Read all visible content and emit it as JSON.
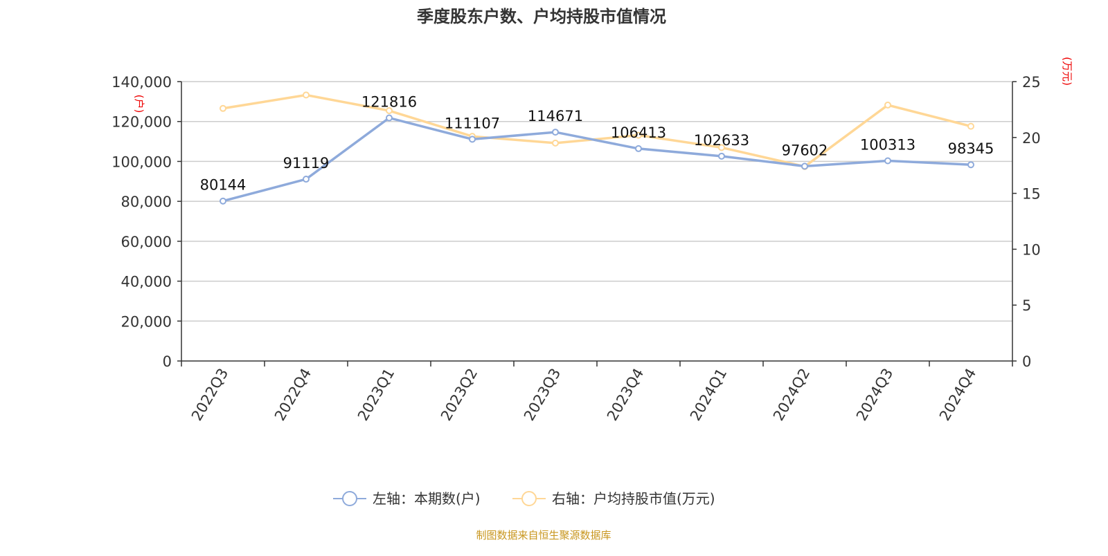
{
  "chart_data": {
    "type": "line",
    "title": "季度股东户数、户均持股市值情况",
    "categories": [
      "2022Q3",
      "2022Q4",
      "2023Q1",
      "2023Q2",
      "2023Q3",
      "2023Q4",
      "2024Q1",
      "2024Q2",
      "2024Q3",
      "2024Q4"
    ],
    "left_axis": {
      "unit": "(户)",
      "ylim": [
        0,
        140000
      ],
      "ticks": [
        "0",
        "20,000",
        "40,000",
        "60,000",
        "80,000",
        "100,000",
        "120,000",
        "140,000"
      ]
    },
    "right_axis": {
      "unit": "(万元)",
      "ylim": [
        0,
        25
      ],
      "ticks": [
        "0",
        "5",
        "10",
        "15",
        "20",
        "25"
      ]
    },
    "series": [
      {
        "name": "左轴：本期数(户)",
        "axis": "left",
        "color": "#8eaadb",
        "values": [
          80144,
          91119,
          121816,
          111107,
          114671,
          106413,
          102633,
          97602,
          100313,
          98345
        ],
        "labels": [
          "80144",
          "91119",
          "121816",
          "111107",
          "114671",
          "106413",
          "102633",
          "97602",
          "100313",
          "98345"
        ]
      },
      {
        "name": "右轴：户均持股市值(万元)",
        "axis": "right",
        "color": "#ffd796",
        "values": [
          22.6,
          23.8,
          22.4,
          20.1,
          19.5,
          20.2,
          19.1,
          17.4,
          22.9,
          21.0
        ]
      }
    ],
    "grid": true,
    "legend": "bottom-center",
    "source": "制图数据来自恒生聚源数据库"
  }
}
